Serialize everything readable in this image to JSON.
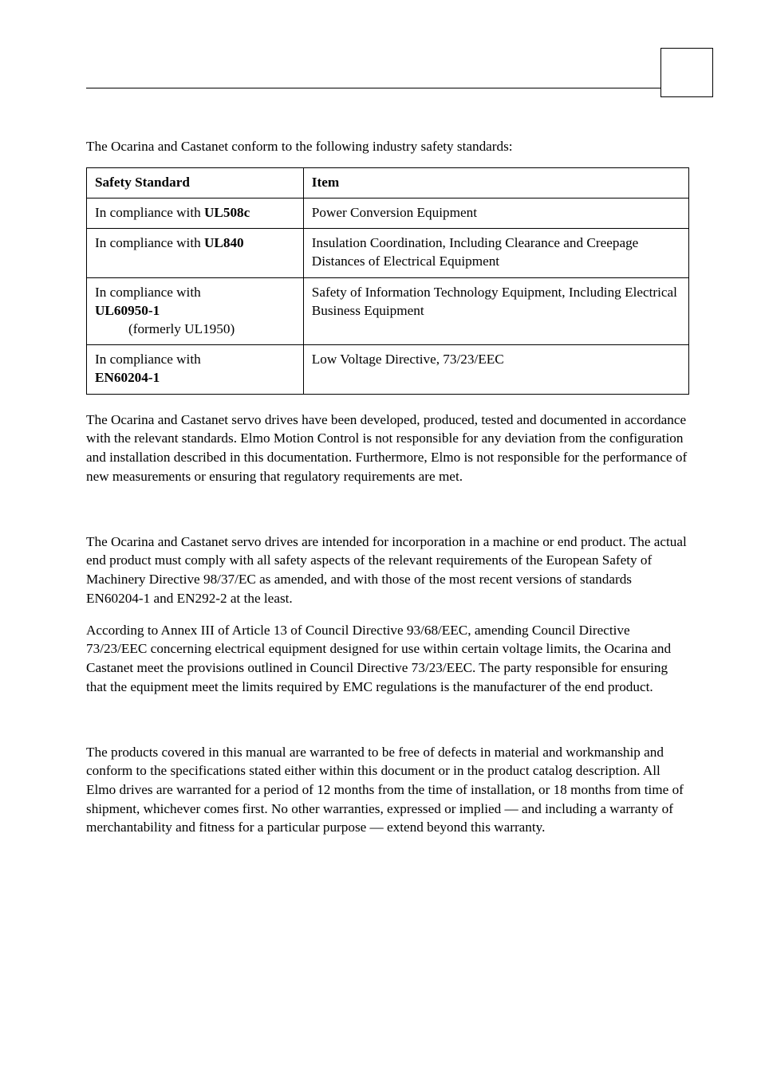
{
  "intro": "The Ocarina and Castanet conform to the following industry safety standards:",
  "table": {
    "header": {
      "c1": "Safety Standard",
      "c2": "Item"
    },
    "rows": [
      {
        "std_pre": "In compliance with ",
        "std_bold": "UL508c",
        "item": "Power Conversion Equipment"
      },
      {
        "std_pre": "In compliance with ",
        "std_bold": "UL840",
        "item": "Insulation Coordination, Including Clearance and Creepage Distances of Electrical Equipment"
      },
      {
        "std_pre": "In compliance with",
        "std_bold": "UL60950-1",
        "std_sub": "(formerly UL1950)",
        "item": "Safety of Information Technology Equipment, Including Electrical Business Equipment"
      },
      {
        "std_pre": "In compliance with",
        "std_bold": "EN60204-1",
        "item": "Low Voltage Directive, 73/23/EEC"
      }
    ]
  },
  "para1": "The Ocarina and Castanet servo drives have been developed, produced, tested and documented in accordance with the relevant standards. Elmo Motion Control is not responsible for any deviation from the configuration and installation described in this documentation. Furthermore, Elmo is not responsible for the performance of new measurements or ensuring that regulatory requirements are met.",
  "para2": "The Ocarina and Castanet servo drives are intended for incorporation in a machine or end product. The actual end product must comply with all safety aspects of the relevant requirements of the European Safety of Machinery Directive 98/37/EC as amended, and with those of the most recent versions of standards EN60204-1 and EN292-2 at the least.",
  "para3": "According to Annex III of Article 13 of Council Directive 93/68/EEC, amending Council Directive 73/23/EEC concerning electrical equipment designed for use within certain voltage limits, the Ocarina and Castanet meet the provisions outlined in Council Directive 73/23/EEC. The party responsible for ensuring that the equipment meet the limits required by EMC regulations is the manufacturer of the end product.",
  "para4": "The products covered in this manual are warranted to be free of defects in material and workmanship and conform to the specifications stated either within this document or in the product catalog description. All Elmo drives are warranted for a period of 12 months from the time of installation, or 18 months from time of shipment, whichever comes first. No other warranties, expressed or implied — and including a warranty of merchantability and fitness for a particular purpose — extend beyond this warranty."
}
